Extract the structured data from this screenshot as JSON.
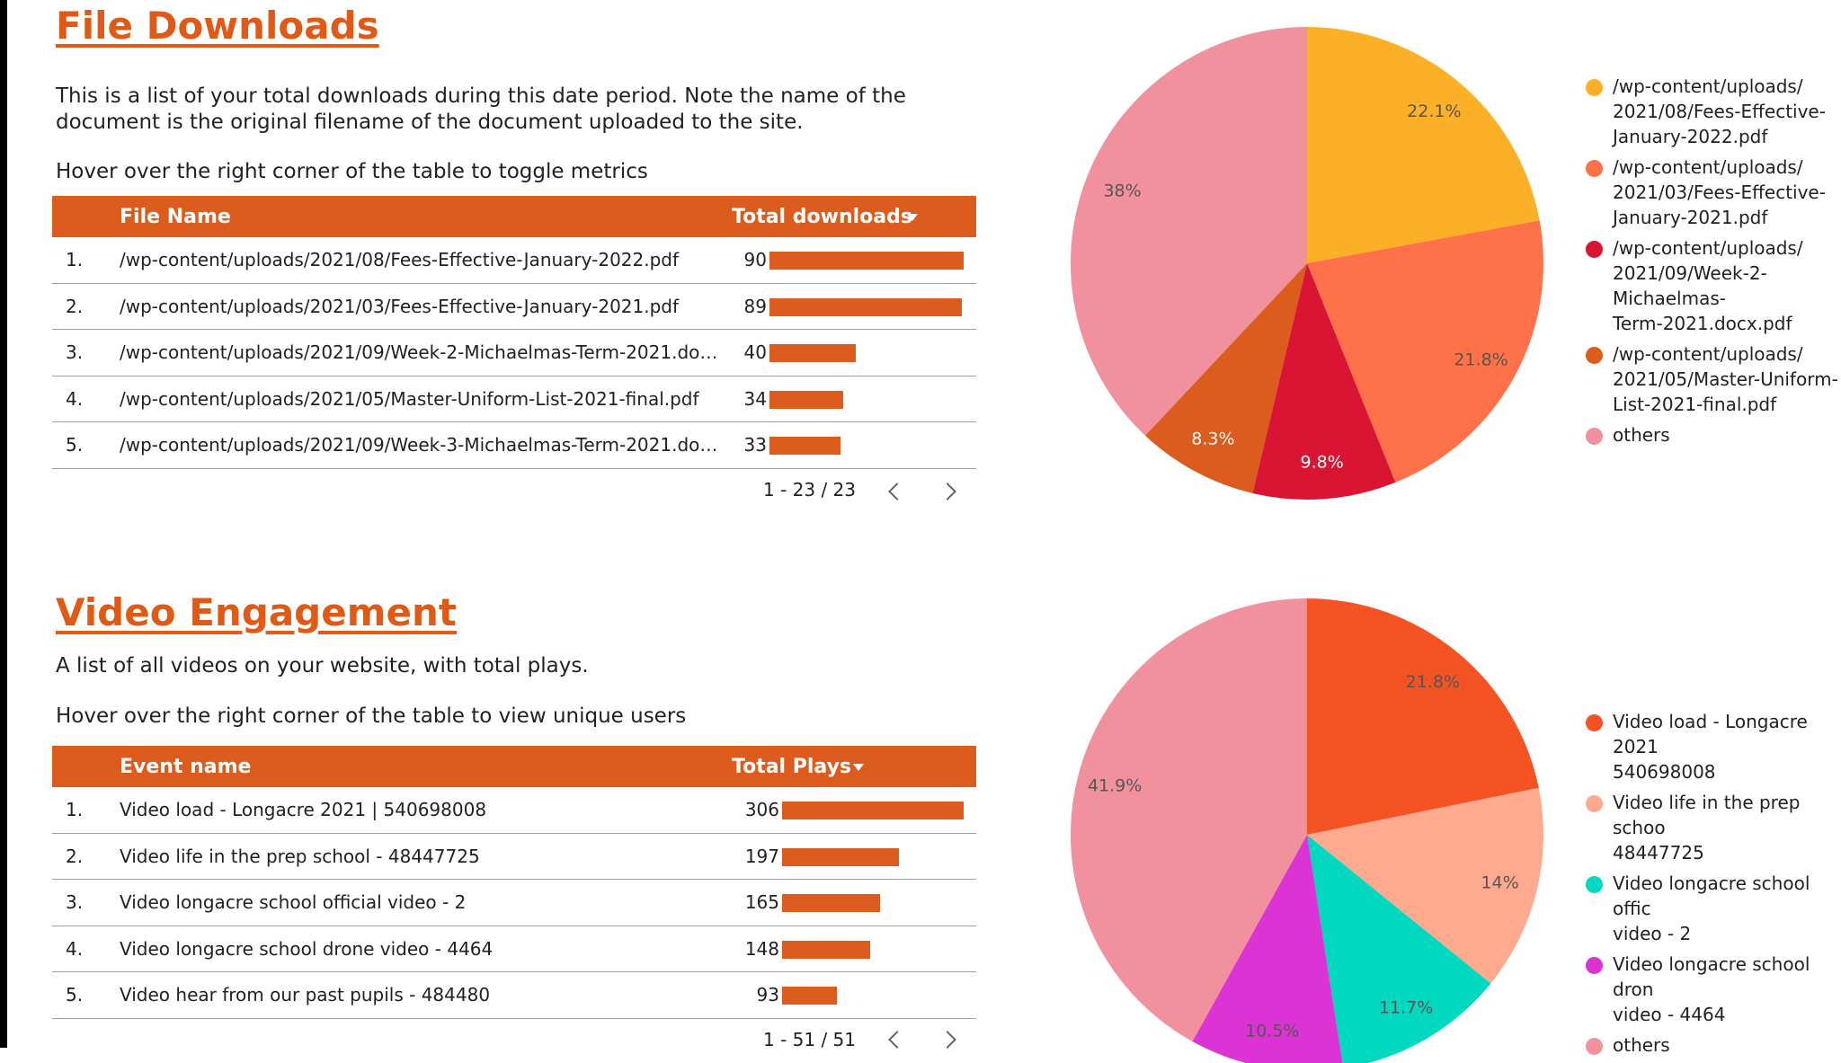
{
  "downloads": {
    "title": "File Downloads",
    "description": "This is a list of your total downloads during this date period. Note the name of the document is the original filename of the document uploaded to the site.",
    "hint": "Hover over the right corner of the table to toggle metrics",
    "table": {
      "col_name": "File Name",
      "col_value": "Total downloads",
      "rows": [
        {
          "idx": "1.",
          "name": "/wp-content/uploads/2021/08/Fees-Effective-January-2022.pdf",
          "value": "90"
        },
        {
          "idx": "2.",
          "name": "/wp-content/uploads/2021/03/Fees-Effective-January-2021.pdf",
          "value": "89"
        },
        {
          "idx": "3.",
          "name": "/wp-content/uploads/2021/09/Week-2-Michaelmas-Term-2021.do…",
          "value": "40"
        },
        {
          "idx": "4.",
          "name": "/wp-content/uploads/2021/05/Master-Uniform-List-2021-final.pdf",
          "value": "34"
        },
        {
          "idx": "5.",
          "name": "/wp-content/uploads/2021/09/Week-3-Michaelmas-Term-2021.do…",
          "value": "33"
        }
      ],
      "pagination": "1 - 23 / 23"
    }
  },
  "videos": {
    "title": "Video Engagement",
    "description": "A list of all videos on your website, with total plays.",
    "hint": "Hover over the right corner of the table to view unique users",
    "table": {
      "col_name": "Event name",
      "col_value": "Total Plays",
      "rows": [
        {
          "idx": "1.",
          "name": "Video load - Longacre 2021 | 540698008",
          "value": "306"
        },
        {
          "idx": "2.",
          "name": "Video life in the prep school - 48447725",
          "value": "197"
        },
        {
          "idx": "3.",
          "name": "Video longacre school official video - 2",
          "value": "165"
        },
        {
          "idx": "4.",
          "name": "Video longacre school drone video - 4464",
          "value": "148"
        },
        {
          "idx": "5.",
          "name": "Video hear from our past pupils - 484480",
          "value": "93"
        }
      ],
      "pagination": "1 - 51 / 51"
    }
  },
  "icons": {
    "sort": "sort-descending-icon",
    "prev": "chevron-left-icon",
    "next": "chevron-right-icon"
  },
  "chart_data": [
    {
      "type": "pie",
      "slices": [
        {
          "label": "/wp-content/uploads/\n2021/08/Fees-Effective-\nJanuary-2022.pdf",
          "value": 22.1,
          "display": "22.1%",
          "color": "#fbb028"
        },
        {
          "label": "/wp-content/uploads/\n2021/03/Fees-Effective-\nJanuary-2021.pdf",
          "value": 21.8,
          "display": "21.8%",
          "color": "#ff7148"
        },
        {
          "label": "/wp-content/uploads/\n2021/09/Week-2-\nMichaelmas-\nTerm-2021.docx.pdf",
          "value": 9.8,
          "display": "9.8%",
          "color": "#da1533"
        },
        {
          "label": "/wp-content/uploads/\n2021/05/Master-Uniform-\nList-2021-final.pdf",
          "value": 8.3,
          "display": "8.3%",
          "color": "#db5c1c"
        },
        {
          "label": "others",
          "value": 38.0,
          "display": "38%",
          "color": "#f2919e"
        }
      ],
      "legend_position": "right"
    },
    {
      "type": "pie",
      "slices": [
        {
          "label": "Video load - Longacre 2021\n540698008",
          "value": 21.8,
          "display": "21.8%",
          "color": "#f55324"
        },
        {
          "label": "Video life in the prep schoo\n48447725",
          "value": 14.0,
          "display": "14%",
          "color": "#ffaa8f"
        },
        {
          "label": "Video longacre school offic\nvideo - 2",
          "value": 11.7,
          "display": "11.7%",
          "color": "#00d9c0"
        },
        {
          "label": "Video longacre school dron\nvideo - 4464",
          "value": 10.5,
          "display": "10.5%",
          "color": "#dc33d5"
        },
        {
          "label": "others",
          "value": 41.9,
          "display": "41.9%",
          "color": "#f2919e"
        }
      ],
      "legend_position": "right"
    }
  ]
}
